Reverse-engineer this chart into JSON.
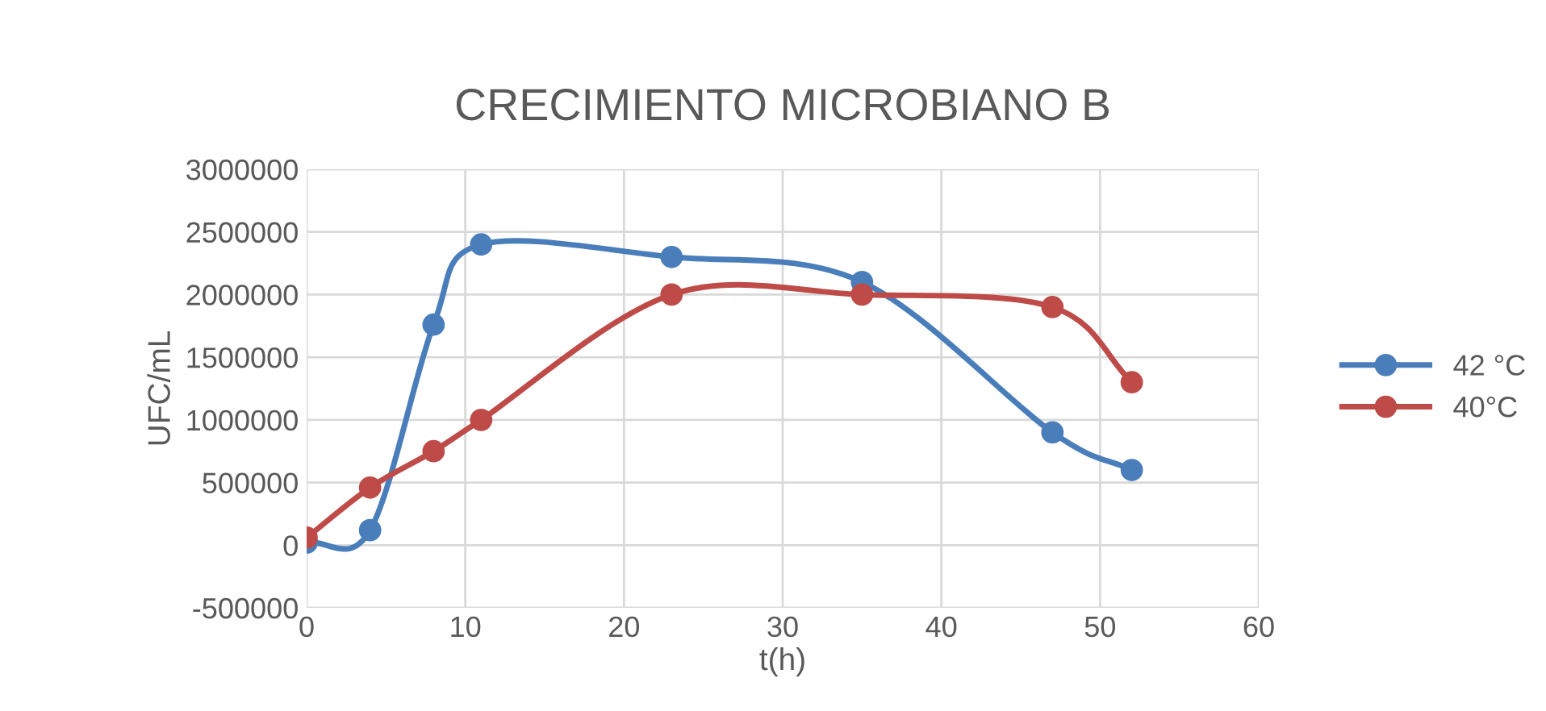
{
  "chart_data": {
    "type": "line",
    "title": "CRECIMIENTO MICROBIANO B",
    "xlabel": "t(h)",
    "ylabel": "UFC/mL",
    "x": [
      0,
      4,
      8,
      11,
      23,
      35,
      47,
      52
    ],
    "series": [
      {
        "name": "42 °C",
        "color": "#4a7ebb",
        "values": [
          20000,
          120000,
          1760000,
          2400000,
          2300000,
          2100000,
          900000,
          600000
        ]
      },
      {
        "name": "40°C",
        "color": "#be4b48",
        "values": [
          60000,
          460000,
          750000,
          1000000,
          2000000,
          2000000,
          1900000,
          1300000
        ]
      }
    ],
    "xlim": [
      0,
      60
    ],
    "xticks": [
      0,
      10,
      20,
      30,
      40,
      50,
      60
    ],
    "ylim": [
      -500000,
      3000000
    ],
    "yticks": [
      -500000,
      0,
      500000,
      1000000,
      1500000,
      2000000,
      2500000,
      3000000
    ],
    "grid": true,
    "legend": "right",
    "marker": "circle",
    "line_style": "solid"
  }
}
